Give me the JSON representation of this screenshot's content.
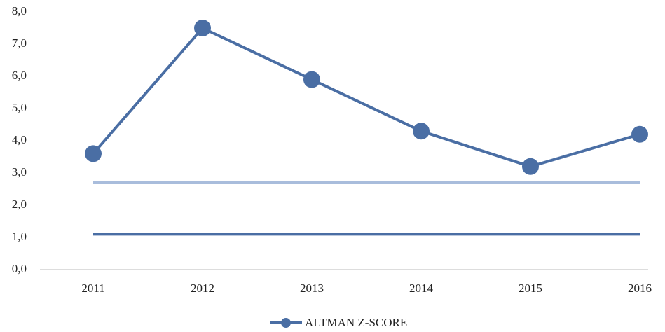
{
  "chart_data": {
    "type": "line",
    "categories": [
      "2011",
      "2012",
      "2013",
      "2014",
      "2015",
      "2016"
    ],
    "series": [
      {
        "name": "ALTMAN Z-SCORE",
        "color": "#4a6ea4",
        "values": [
          3.6,
          7.5,
          5.9,
          4.3,
          3.2,
          4.2
        ]
      }
    ],
    "reference_lines": [
      {
        "value": 2.7,
        "color": "#a9bddc"
      },
      {
        "value": 1.1,
        "color": "#4a6ea4"
      }
    ],
    "ylim": [
      0,
      8
    ],
    "yticks": [
      {
        "value": 0,
        "label": "0,0"
      },
      {
        "value": 1,
        "label": "1,0"
      },
      {
        "value": 2,
        "label": "2,0"
      },
      {
        "value": 3,
        "label": "3,0"
      },
      {
        "value": 4,
        "label": "4,0"
      },
      {
        "value": 5,
        "label": "5,0"
      },
      {
        "value": 6,
        "label": "6,0"
      },
      {
        "value": 7,
        "label": "7,0"
      },
      {
        "value": 8,
        "label": "8,0"
      }
    ],
    "grid": false,
    "legend": "bottom"
  }
}
